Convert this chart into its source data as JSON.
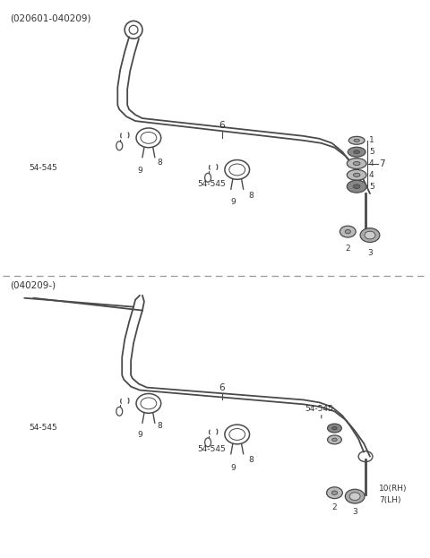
{
  "bg_color": "#ffffff",
  "line_color": "#4a4a4a",
  "text_color": "#333333",
  "dashed_color": "#999999",
  "fig_width": 4.8,
  "fig_height": 6.23,
  "top_label": "(020601-040209)",
  "bottom_label": "(040209-)"
}
